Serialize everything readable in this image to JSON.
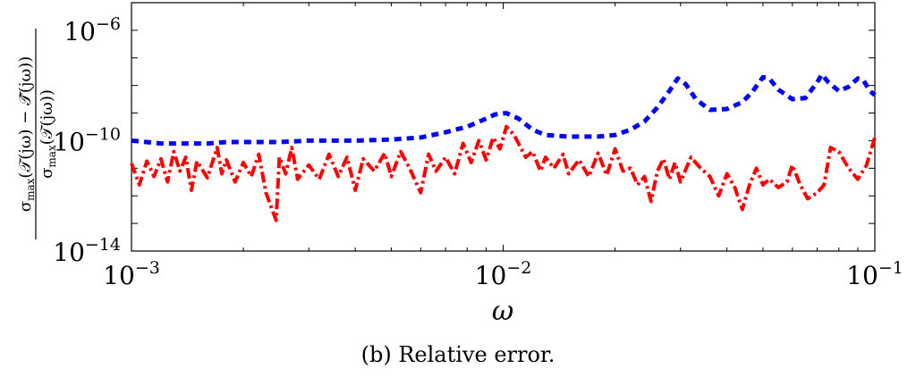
{
  "chart_data": {
    "type": "line",
    "title": "",
    "xlabel": "ω",
    "ylabel": "σmax(T(jω) − T̂(jω)) / σmax(T(jω))",
    "xscale": "log",
    "yscale": "log",
    "xlim": [
      0.001,
      0.1
    ],
    "ylim": [
      1e-14,
      1e-05
    ],
    "x_ticks": [
      {
        "base": "10",
        "exp": "−3",
        "value": 0.001
      },
      {
        "base": "10",
        "exp": "−2",
        "value": 0.01
      },
      {
        "base": "10",
        "exp": "−1",
        "value": 0.1
      }
    ],
    "y_ticks": [
      {
        "base": "10",
        "exp": "−6",
        "value": 1e-06
      },
      {
        "base": "10",
        "exp": "−10",
        "value": 1e-10
      },
      {
        "base": "10",
        "exp": "−14",
        "value": 1e-14
      }
    ],
    "grid": false,
    "legend": "none",
    "series": [
      {
        "color": "#0000ff",
        "style": "dotted",
        "points": [
          [
            0.001,
            1e-10
          ],
          [
            0.0012,
            7.9e-11
          ],
          [
            0.0014,
            7.9e-11
          ],
          [
            0.0016,
            7.9e-11
          ],
          [
            0.0018,
            8.9e-11
          ],
          [
            0.002,
            8.9e-11
          ],
          [
            0.0025,
            8.9e-11
          ],
          [
            0.003,
            1e-10
          ],
          [
            0.004,
            1e-10
          ],
          [
            0.005,
            1.1e-10
          ],
          [
            0.006,
            1.3e-10
          ],
          [
            0.007,
            2e-10
          ],
          [
            0.008,
            3.2e-10
          ],
          [
            0.009,
            6.3e-10
          ],
          [
            0.0095,
            8.9e-10
          ],
          [
            0.0102,
            1e-09
          ],
          [
            0.011,
            6.3e-10
          ],
          [
            0.012,
            2.5e-10
          ],
          [
            0.013,
            1.6e-10
          ],
          [
            0.015,
            1.4e-10
          ],
          [
            0.018,
            1.4e-10
          ],
          [
            0.02,
            1.6e-10
          ],
          [
            0.022,
            2.5e-10
          ],
          [
            0.024,
            5e-10
          ],
          [
            0.026,
            1.6e-09
          ],
          [
            0.028,
            6.3e-09
          ],
          [
            0.0295,
            1.8e-08
          ],
          [
            0.031,
            1.1e-08
          ],
          [
            0.033,
            3.2e-09
          ],
          [
            0.036,
            1.3e-09
          ],
          [
            0.04,
            1.4e-09
          ],
          [
            0.044,
            2.5e-09
          ],
          [
            0.047,
            6.3e-09
          ],
          [
            0.05,
            2e-08
          ],
          [
            0.052,
            1.8e-08
          ],
          [
            0.055,
            7.1e-09
          ],
          [
            0.06,
            3.2e-09
          ],
          [
            0.065,
            3.5e-09
          ],
          [
            0.07,
            1.3e-08
          ],
          [
            0.072,
            2.5e-08
          ],
          [
            0.075,
            1.3e-08
          ],
          [
            0.08,
            6.3e-09
          ],
          [
            0.085,
            8.9e-09
          ],
          [
            0.09,
            1.8e-08
          ],
          [
            0.093,
            1.6e-08
          ],
          [
            0.097,
            6.3e-09
          ],
          [
            0.1,
            4.5e-09
          ]
        ]
      },
      {
        "color": "#ff0000",
        "style": "dash-dotted",
        "points": [
          [
            0.001,
            1.5e-11
          ],
          [
            0.00105,
            2.5e-12
          ],
          [
            0.0011,
            1.8e-11
          ],
          [
            0.00115,
            5e-12
          ],
          [
            0.0012,
            2.2e-11
          ],
          [
            0.00125,
            3.2e-12
          ],
          [
            0.0013,
            4e-11
          ],
          [
            0.00135,
            7.9e-12
          ],
          [
            0.0014,
            2.5e-11
          ],
          [
            0.00145,
            1.6e-12
          ],
          [
            0.0015,
            1.8e-11
          ],
          [
            0.0016,
            4.5e-12
          ],
          [
            0.0017,
            5.6e-11
          ],
          [
            0.00175,
            6.3e-12
          ],
          [
            0.0018,
            2e-11
          ],
          [
            0.0019,
            3.2e-12
          ],
          [
            0.002,
            1.6e-11
          ],
          [
            0.0021,
            5e-12
          ],
          [
            0.0022,
            3.2e-11
          ],
          [
            0.0023,
            1.3e-12
          ],
          [
            0.00245,
            1.3e-13
          ],
          [
            0.0025,
            2.5e-11
          ],
          [
            0.0026,
            6.3e-12
          ],
          [
            0.0027,
            5.6e-11
          ],
          [
            0.0028,
            4e-12
          ],
          [
            0.003,
            1.3e-11
          ],
          [
            0.0032,
            4e-12
          ],
          [
            0.0034,
            3.2e-11
          ],
          [
            0.0036,
            5e-12
          ],
          [
            0.0038,
            2.5e-11
          ],
          [
            0.004,
            1.6e-12
          ],
          [
            0.0042,
            2.2e-11
          ],
          [
            0.0045,
            7.9e-12
          ],
          [
            0.0048,
            3.5e-11
          ],
          [
            0.005,
            5e-12
          ],
          [
            0.0053,
            4e-11
          ],
          [
            0.0056,
            1e-11
          ],
          [
            0.006,
            1.3e-12
          ],
          [
            0.0063,
            3.2e-11
          ],
          [
            0.0066,
            7.9e-12
          ],
          [
            0.007,
            2.5e-11
          ],
          [
            0.0074,
            6.3e-12
          ],
          [
            0.0078,
            7.9e-11
          ],
          [
            0.0082,
            1.6e-11
          ],
          [
            0.0086,
            1e-10
          ],
          [
            0.009,
            2e-11
          ],
          [
            0.0094,
            1.3e-10
          ],
          [
            0.0098,
            5e-11
          ],
          [
            0.0102,
            3.2e-10
          ],
          [
            0.0107,
            1.6e-10
          ],
          [
            0.011,
            7.9e-11
          ],
          [
            0.0115,
            2.5e-11
          ],
          [
            0.012,
            4e-11
          ],
          [
            0.0126,
            7.9e-12
          ],
          [
            0.013,
            2.5e-11
          ],
          [
            0.0137,
            1e-11
          ],
          [
            0.0145,
            3.2e-11
          ],
          [
            0.015,
            6.3e-12
          ],
          [
            0.016,
            2e-11
          ],
          [
            0.017,
            5e-12
          ],
          [
            0.018,
            3.5e-11
          ],
          [
            0.019,
            5.6e-12
          ],
          [
            0.02,
            5e-11
          ],
          [
            0.021,
            7.9e-12
          ],
          [
            0.022,
            1e-11
          ],
          [
            0.023,
            2.5e-12
          ],
          [
            0.024,
            5e-12
          ],
          [
            0.025,
            6.3e-13
          ],
          [
            0.026,
            7.9e-12
          ],
          [
            0.027,
            2.2e-11
          ],
          [
            0.028,
            4e-12
          ],
          [
            0.029,
            1.6e-11
          ],
          [
            0.03,
            3.2e-12
          ],
          [
            0.032,
            2.5e-11
          ],
          [
            0.034,
            1e-11
          ],
          [
            0.036,
            5e-12
          ],
          [
            0.038,
            1e-12
          ],
          [
            0.04,
            6.3e-12
          ],
          [
            0.042,
            2e-12
          ],
          [
            0.044,
            3.2e-13
          ],
          [
            0.046,
            2.5e-12
          ],
          [
            0.048,
            1e-11
          ],
          [
            0.05,
            2.5e-12
          ],
          [
            0.052,
            4e-12
          ],
          [
            0.055,
            2e-12
          ],
          [
            0.058,
            3.2e-12
          ],
          [
            0.06,
            1.3e-11
          ],
          [
            0.063,
            2.5e-12
          ],
          [
            0.066,
            7.9e-13
          ],
          [
            0.07,
            1.3e-12
          ],
          [
            0.073,
            2.5e-12
          ],
          [
            0.076,
            5.6e-11
          ],
          [
            0.08,
            4e-11
          ],
          [
            0.085,
            1e-11
          ],
          [
            0.09,
            4e-12
          ],
          [
            0.095,
            1.3e-11
          ],
          [
            0.1,
            1.3e-10
          ]
        ]
      }
    ]
  },
  "caption": "(b) Relative error."
}
